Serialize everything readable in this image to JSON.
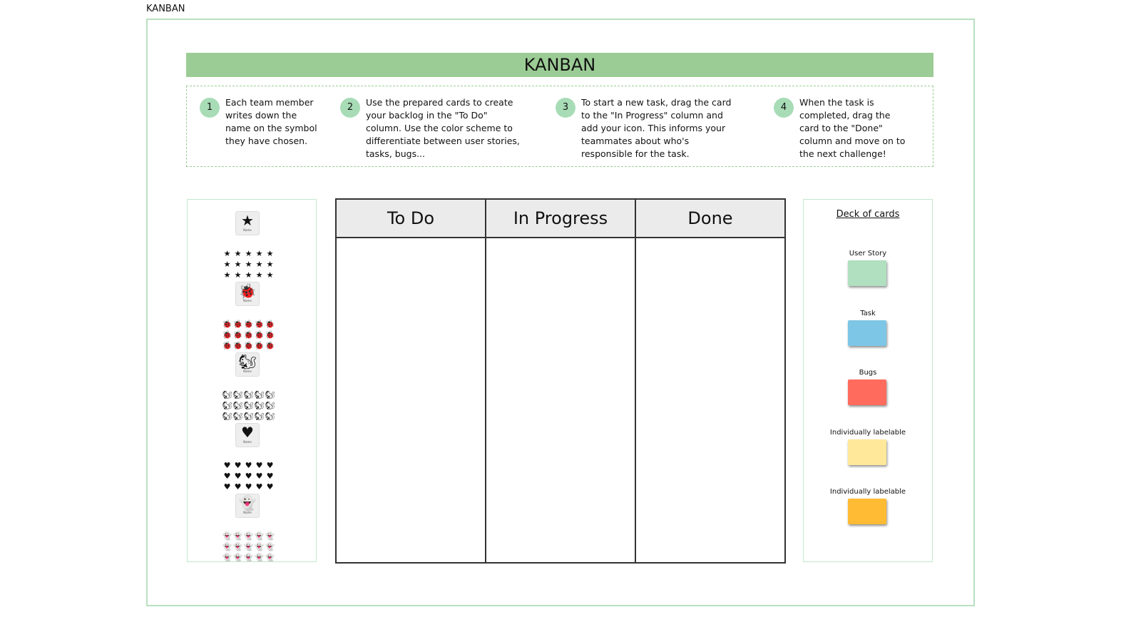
{
  "page_label": "KANBAN",
  "title": "KANBAN",
  "steps": [
    {
      "num": "1",
      "text": "Each team member writes down the name on the symbol they have chosen."
    },
    {
      "num": "2",
      "text": "Use the prepared cards to create your backlog in the \"To Do\" column. Use the color scheme to differentiate between user stories, tasks, bugs..."
    },
    {
      "num": "3",
      "text": "To start a new task, drag the card to the \"In Progress\" column and add your icon. This informs your teammates about who's responsible for the task."
    },
    {
      "num": "4",
      "text": "When the task is completed, drag the card to the \"Done\" column and move on to the next challenge!"
    }
  ],
  "symbols": [
    {
      "icon": "star-icon",
      "glyph": "★",
      "name": "Name"
    },
    {
      "icon": "bug-icon",
      "glyph": "🐞",
      "name": "Name"
    },
    {
      "icon": "squirrel-icon",
      "glyph": "🐿",
      "name": "Name"
    },
    {
      "icon": "heart-icon",
      "glyph": "♥",
      "name": "Name"
    },
    {
      "icon": "ghost-icon",
      "glyph": "👻",
      "name": "Name"
    }
  ],
  "columns": [
    "To Do",
    "In Progress",
    "Done"
  ],
  "deck": {
    "title": "Deck of cards",
    "cards": [
      {
        "label": "User Story",
        "color": "#b0e0c0"
      },
      {
        "label": "Task",
        "color": "#7ec6e6"
      },
      {
        "label": "Bugs",
        "color": "#ff6b5c"
      },
      {
        "label": "Individually labelable",
        "color": "#ffe89a"
      },
      {
        "label": "Individually labelable",
        "color": "#ffbb33"
      }
    ]
  },
  "colors": {
    "accent": "#9ccc95",
    "frame": "#b9e0c0"
  }
}
